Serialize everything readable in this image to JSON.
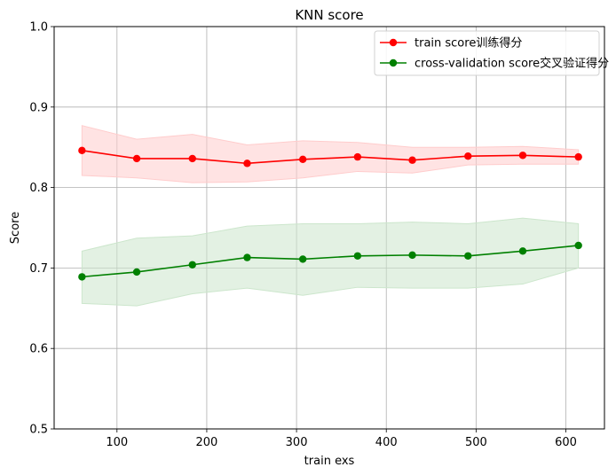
{
  "chart_data": {
    "type": "line",
    "title": "KNN score",
    "xlabel": "train exs",
    "ylabel": "Score",
    "xlim": [
      30,
      643
    ],
    "ylim": [
      0.5,
      1.0
    ],
    "xticks": [
      100,
      200,
      300,
      400,
      500,
      600
    ],
    "yticks": [
      0.5,
      0.6,
      0.7,
      0.8,
      0.9,
      1.0
    ],
    "ytick_labels": [
      "0.5",
      "0.6",
      "0.7",
      "0.8",
      "0.9",
      "1.0"
    ],
    "grid": true,
    "legend_position": "upper right",
    "x": [
      61,
      122,
      184,
      245,
      307,
      368,
      429,
      491,
      552,
      614
    ],
    "series": [
      {
        "name": "train score训练得分",
        "color": "#ff0000",
        "band_color": "#ffcccc",
        "values": [
          0.846,
          0.836,
          0.836,
          0.83,
          0.835,
          0.838,
          0.834,
          0.839,
          0.84,
          0.838
        ],
        "upper": [
          0.877,
          0.86,
          0.866,
          0.853,
          0.858,
          0.856,
          0.85,
          0.85,
          0.851,
          0.847
        ],
        "lower": [
          0.815,
          0.812,
          0.806,
          0.807,
          0.812,
          0.82,
          0.818,
          0.828,
          0.829,
          0.829
        ]
      },
      {
        "name": "cross-validation score交叉验证得分",
        "color": "#008000",
        "band_color": "#cce6cc",
        "values": [
          0.689,
          0.695,
          0.704,
          0.713,
          0.711,
          0.715,
          0.716,
          0.715,
          0.721,
          0.728
        ],
        "upper": [
          0.721,
          0.737,
          0.74,
          0.752,
          0.755,
          0.755,
          0.757,
          0.755,
          0.762,
          0.755
        ],
        "lower": [
          0.656,
          0.653,
          0.668,
          0.675,
          0.666,
          0.676,
          0.675,
          0.675,
          0.68,
          0.7
        ]
      }
    ]
  }
}
